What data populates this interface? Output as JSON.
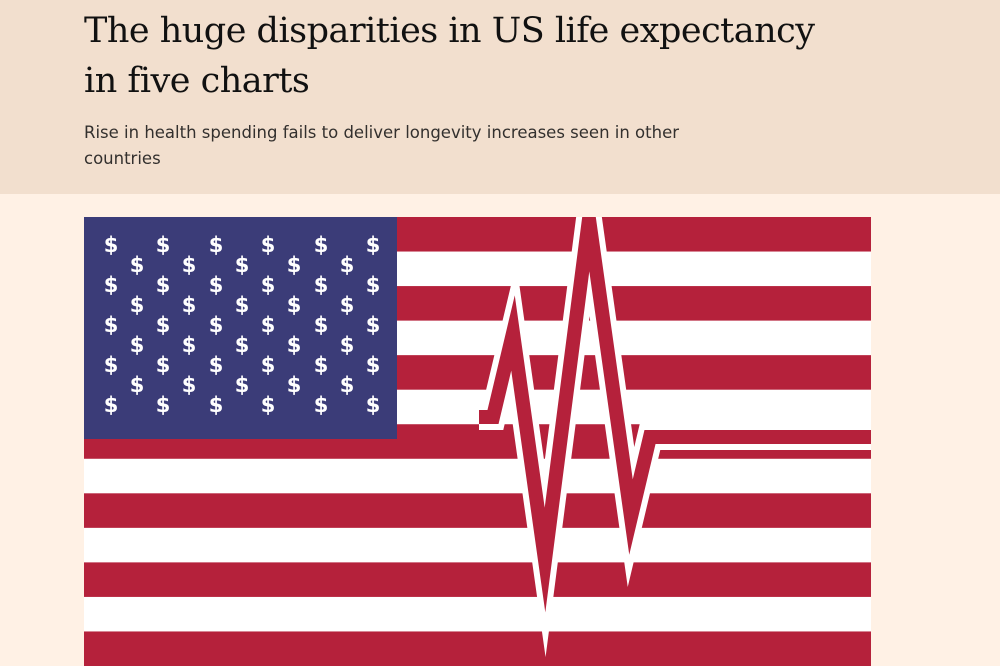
{
  "article": {
    "headline": "The huge disparities in US life expectancy in five charts",
    "standfirst": "Rise in health spending fails to deliver longevity increases seen in other countries"
  },
  "hero_image": {
    "canton_symbol": "$",
    "icon": "us-flag-heartbeat-illustration",
    "colors": {
      "red": "#b5213b",
      "white": "#ffffff",
      "blue": "#3b3c78",
      "page_background": "#fff1e5",
      "header_background": "#f2dfce"
    }
  }
}
